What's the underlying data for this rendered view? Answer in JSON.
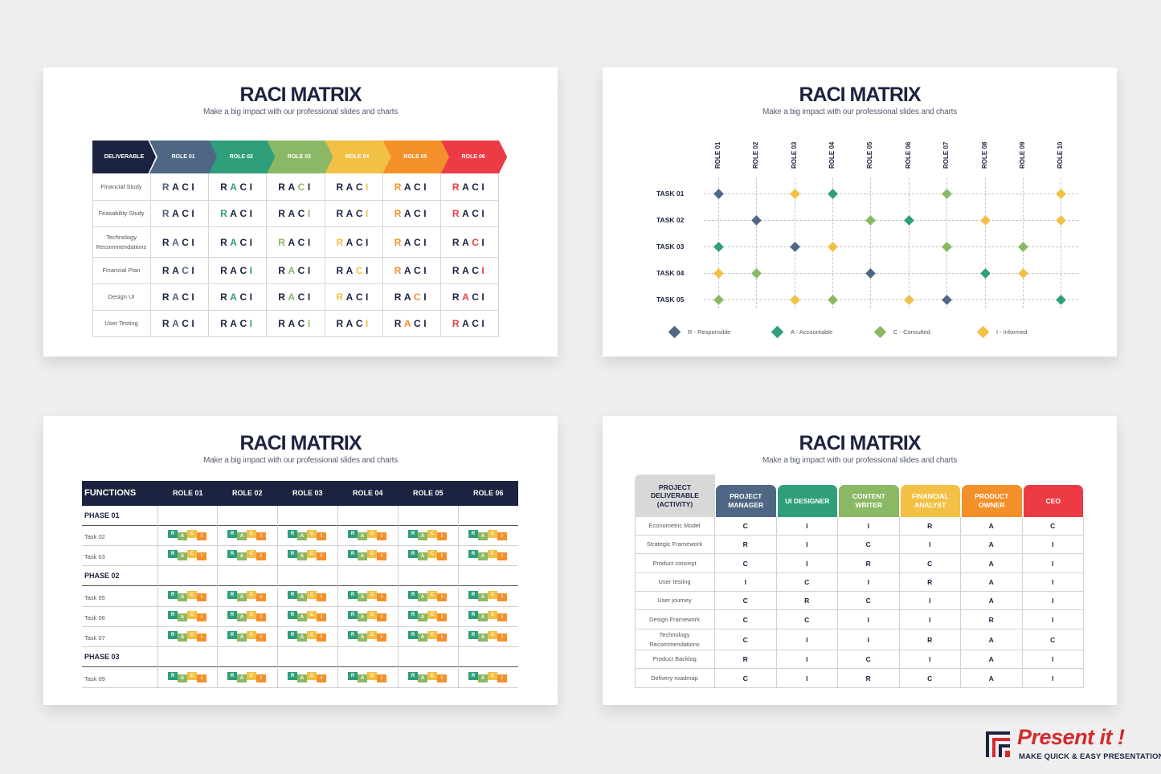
{
  "slides": [
    {
      "title": "RACI MATRIX",
      "subtitle": "Make a big impact with our professional slides and charts"
    },
    {
      "title": "RACI MATRIX",
      "subtitle": "Make a big impact with our professional slides and charts"
    },
    {
      "title": "RACI MATRIX",
      "subtitle": "Make a big impact with our professional slides and charts"
    },
    {
      "title": "RACI MATRIX",
      "subtitle": "Make a big impact with our professional slides and charts"
    }
  ],
  "colors": {
    "navy": "#1c2340",
    "slate": "#4f6785",
    "teal": "#2f9e7a",
    "green": "#8ab864",
    "yellow": "#f2c045",
    "orange": "#f4902a",
    "red": "#ec3b45",
    "gray": "#cfcfcf"
  },
  "matrix1": {
    "header": [
      "DELIVERABLE",
      "ROLE 01",
      "ROLE 02",
      "ROLE 03",
      "ROLE 04",
      "ROLE 05",
      "ROLE 06"
    ],
    "header_colors": [
      "#1c2340",
      "#4f6785",
      "#2f9e7a",
      "#8ab864",
      "#f2c045",
      "#f4902a",
      "#ec3b45"
    ],
    "rows": [
      {
        "label": "Financial Study",
        "highlight": [
          "R",
          "A",
          "C",
          "I",
          "R",
          "R"
        ]
      },
      {
        "label": "Feasability Study",
        "highlight": [
          "R",
          "R",
          "I",
          "I",
          "R",
          "R"
        ]
      },
      {
        "label": "Technology Recommendations",
        "highlight": [
          "A",
          "A",
          "R",
          "R",
          "R",
          "C"
        ]
      },
      {
        "label": "Financial Plan",
        "highlight": [
          "C",
          "I",
          "A",
          "C",
          "R",
          "I"
        ]
      },
      {
        "label": "Design UI",
        "highlight": [
          "A",
          "A",
          "A",
          "R",
          "C",
          "A"
        ]
      },
      {
        "label": "User Testing",
        "highlight": [
          "A",
          "I",
          "I",
          "I",
          "A",
          "R"
        ]
      }
    ],
    "letters": [
      "R",
      "A",
      "C",
      "I"
    ]
  },
  "matrix2": {
    "roles": [
      "ROLE 01",
      "ROLE 02",
      "ROLE 03",
      "ROLE 04",
      "ROLE 05",
      "ROLE 06",
      "ROLE 07",
      "ROLE 08",
      "ROLE 09",
      "ROLE 10"
    ],
    "tasks": [
      {
        "label": "TASK 01",
        "marks": [
          "R",
          "",
          "I",
          "A",
          "",
          "",
          "C",
          "",
          "",
          "I"
        ]
      },
      {
        "label": "TASK 02",
        "marks": [
          "",
          "R",
          "",
          "",
          "C",
          "A",
          "",
          "I",
          "",
          "I"
        ]
      },
      {
        "label": "TASK 03",
        "marks": [
          "A",
          "",
          "R",
          "I",
          "",
          "",
          "C",
          "",
          "C",
          ""
        ]
      },
      {
        "label": "TASK 04",
        "marks": [
          "I",
          "C",
          "",
          "",
          "R",
          "",
          "",
          "A",
          "I",
          ""
        ]
      },
      {
        "label": "TASK 05",
        "marks": [
          "C",
          "",
          "I",
          "C",
          "",
          "I",
          "R",
          "",
          "",
          "A"
        ]
      }
    ],
    "legend": [
      {
        "key": "R",
        "label": "R - Responsible",
        "color": "#4f6785"
      },
      {
        "key": "A",
        "label": "A - Accountable",
        "color": "#2f9e7a"
      },
      {
        "key": "C",
        "label": "C - Consulted",
        "color": "#8ab864"
      },
      {
        "key": "I",
        "label": "I - Informed",
        "color": "#f2c045"
      }
    ]
  },
  "matrix3": {
    "header": [
      "FUNCTIONS",
      "ROLE 01",
      "ROLE 02",
      "ROLE 03",
      "ROLE 04",
      "ROLE 05",
      "ROLE 06"
    ],
    "rows": [
      {
        "label": "PHASE 01",
        "phase": true
      },
      {
        "label": "Task 02",
        "phase": false
      },
      {
        "label": "Task 03",
        "phase": false
      },
      {
        "label": "PHASE 02",
        "phase": true
      },
      {
        "label": "Task 05",
        "phase": false
      },
      {
        "label": "Task 06",
        "phase": false
      },
      {
        "label": "Task 07",
        "phase": false
      },
      {
        "label": "PHASE 03",
        "phase": true
      },
      {
        "label": "Task 09",
        "phase": false
      }
    ],
    "letters": [
      "R",
      "A",
      "C",
      "I"
    ],
    "letter_colors": [
      "#2f9e7a",
      "#8ab864",
      "#f2c045",
      "#f4902a"
    ]
  },
  "matrix4": {
    "header": [
      "PROJECT DELIVERABLE (ACTIVITY)",
      "PROJECT MANAGER",
      "UI DESIGNER",
      "CONTENT WRITER",
      "FINANCIAL ANALYST",
      "PRODUCT OWNER",
      "CEO"
    ],
    "header_colors": [
      "#d8d8d8",
      "#4f6785",
      "#2f9e7a",
      "#8ab864",
      "#f2c045",
      "#f4902a",
      "#ec3b45"
    ],
    "rows": [
      {
        "label": "Econometric Model",
        "values": [
          "C",
          "I",
          "I",
          "R",
          "A",
          "C"
        ]
      },
      {
        "label": "Strategic Framework",
        "values": [
          "R",
          "I",
          "C",
          "I",
          "A",
          "I"
        ]
      },
      {
        "label": "Product concept",
        "values": [
          "C",
          "I",
          "R",
          "C",
          "A",
          "I"
        ]
      },
      {
        "label": "User testing",
        "values": [
          "I",
          "C",
          "I",
          "R",
          "A",
          "I"
        ]
      },
      {
        "label": "User journey",
        "values": [
          "C",
          "R",
          "C",
          "I",
          "A",
          "I"
        ]
      },
      {
        "label": "Design Framework",
        "values": [
          "C",
          "C",
          "I",
          "I",
          "R",
          "I"
        ]
      },
      {
        "label": "Technology Recommendations",
        "values": [
          "C",
          "I",
          "I",
          "R",
          "A",
          "C"
        ]
      },
      {
        "label": "Product Backlog",
        "values": [
          "R",
          "I",
          "C",
          "I",
          "A",
          "I"
        ]
      },
      {
        "label": "Delivery roadmap",
        "values": [
          "C",
          "I",
          "R",
          "C",
          "A",
          "I"
        ]
      }
    ]
  },
  "brand": {
    "name": "Present it !",
    "tagline": "MAKE QUICK & EASY PRESENTATIONS"
  }
}
